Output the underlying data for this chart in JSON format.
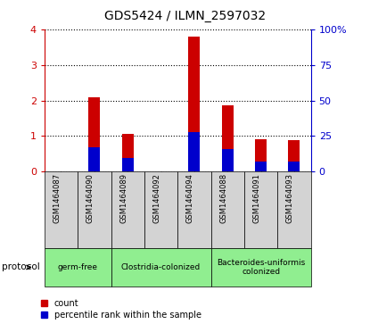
{
  "title": "GDS5424 / ILMN_2597032",
  "samples": [
    "GSM1464087",
    "GSM1464090",
    "GSM1464089",
    "GSM1464092",
    "GSM1464094",
    "GSM1464088",
    "GSM1464091",
    "GSM1464093"
  ],
  "count_values": [
    0.0,
    2.08,
    1.06,
    0.0,
    3.78,
    1.87,
    0.9,
    0.88
  ],
  "percentile_values": [
    0.0,
    0.68,
    0.38,
    0.0,
    1.1,
    0.63,
    0.28,
    0.28
  ],
  "groups": [
    {
      "label": "germ-free",
      "start": 0,
      "end": 1,
      "color": "#90ee90"
    },
    {
      "label": "Clostridia-colonized",
      "start": 2,
      "end": 4,
      "color": "#90ee90"
    },
    {
      "label": "Bacteroides-uniformis\ncolonized",
      "start": 5,
      "end": 7,
      "color": "#90ee90"
    }
  ],
  "bar_color": "#cc0000",
  "percentile_color": "#0000cc",
  "tick_color_left": "#cc0000",
  "tick_color_right": "#0000cc",
  "ylim_left": [
    0,
    4
  ],
  "ylim_right": [
    0,
    100
  ],
  "yticks_left": [
    0,
    1,
    2,
    3,
    4
  ],
  "ytick_labels_left": [
    "0",
    "1",
    "2",
    "3",
    "4"
  ],
  "yticks_right": [
    0,
    25,
    50,
    75,
    100
  ],
  "ytick_labels_right": [
    "0",
    "25",
    "50",
    "75",
    "100%"
  ],
  "bg_color": "#d3d3d3",
  "bar_width": 0.35,
  "legend_count_label": "count",
  "legend_percentile_label": "percentile rank within the sample"
}
